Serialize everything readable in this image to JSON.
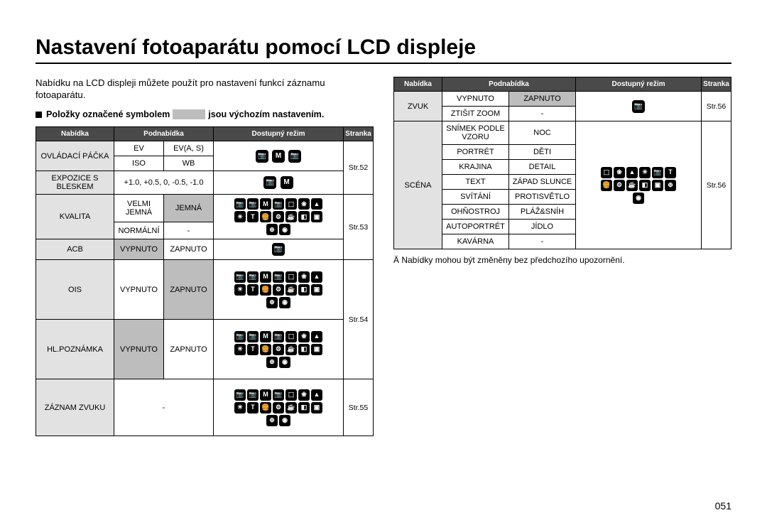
{
  "title": "Nastavení fotoaparátu pomocí LCD displeje",
  "intro": "Nabídku na LCD displeji můžete použít pro nastavení funkcí záznamu fotoaparátu.",
  "note_pre": "Položky označené symbolem",
  "note_post": "jsou výchozím nastavením.",
  "headers": {
    "menu": "Nabídka",
    "sub": "Podnabídka",
    "mode": "Dostupný režim",
    "page": "Stranka"
  },
  "left": {
    "r1_menu": "OVLÁDACÍ PÁČKA",
    "r1a": "EV",
    "r1b": "EV(A, S)",
    "r1c": "ISO",
    "r1d": "WB",
    "r1_page": "Str.52",
    "r2_menu": "EXPOZICE S BLESKEM",
    "r2_sub": "+1.0, +0.5, 0, -0.5, -1.0",
    "r3_menu": "KVALITA",
    "r3a": "VELMI JEMNÁ",
    "r3b": "JEMNÁ",
    "r3c": "NORMÁLNÍ",
    "r3d": "-",
    "r3_page": "Str.53",
    "r4_menu": "ACB",
    "r4a": "VYPNUTO",
    "r4b": "ZAPNUTO",
    "r5_menu": "OIS",
    "r5a": "VYPNUTO",
    "r5b": "ZAPNUTO",
    "r6_menu": "HL.POZNÁMKA",
    "r6a": "VYPNUTO",
    "r6b": "ZAPNUTO",
    "r56_page": "Str.54",
    "r7_menu": "ZÁZNAM ZVUKU",
    "r7_sub": "-",
    "r7_page": "Str.55"
  },
  "right": {
    "r1_menu": "ZVUK",
    "r1a": "VYPNUTO",
    "r1b": "ZAPNUTO",
    "r1c": "ZTIŠIT ZOOM",
    "r1d": "-",
    "r1_page": "Str.56",
    "r2_menu": "SCÉNA",
    "s1a": "SNÍMEK PODLE VZORU",
    "s1b": "NOC",
    "s2a": "PORTRÉT",
    "s2b": "DĚTI",
    "s3a": "KRAJINA",
    "s3b": "DETAIL",
    "s4a": "TEXT",
    "s4b": "ZÁPAD SLUNCE",
    "s5a": "SVÍTÁNÍ",
    "s5b": "PROTISVĚTLO",
    "s6a": "OHŇOSTROJ",
    "s6b": "PLÁŽ&SNÍH",
    "s7a": "AUTOPORTRÉT",
    "s7b": "JÍDLO",
    "s8a": "KAVÁRNA",
    "s8b": "-",
    "r2_page": "Str.56"
  },
  "footnote": "Ä Nabídky mohou být změněny bez předchozího upozornění.",
  "pagenum": "051",
  "icons": {
    "small3": [
      "📷",
      "M",
      "📷"
    ],
    "small2": [
      "📷",
      "M"
    ],
    "small1": [
      "📷"
    ],
    "grid_big": [
      "📷",
      "📷",
      "M",
      "📷",
      "⬚",
      "❀",
      "▲",
      "☀",
      "T",
      "🍔",
      "⚙",
      "☕",
      "◧",
      "▣",
      "⊕",
      "◉"
    ],
    "grid_med": [
      "📷",
      "📷",
      "M",
      "📷",
      "⬚",
      "❀",
      "▲",
      "☀",
      "T",
      "🍔",
      "⚙",
      "☕",
      "▣",
      "⊕"
    ],
    "scene": [
      "⬚",
      "❀",
      "▲",
      "☀",
      "📷",
      "T",
      "🍔",
      "⚙",
      "☕",
      "◧",
      "▣",
      "⊕",
      "◉"
    ]
  }
}
